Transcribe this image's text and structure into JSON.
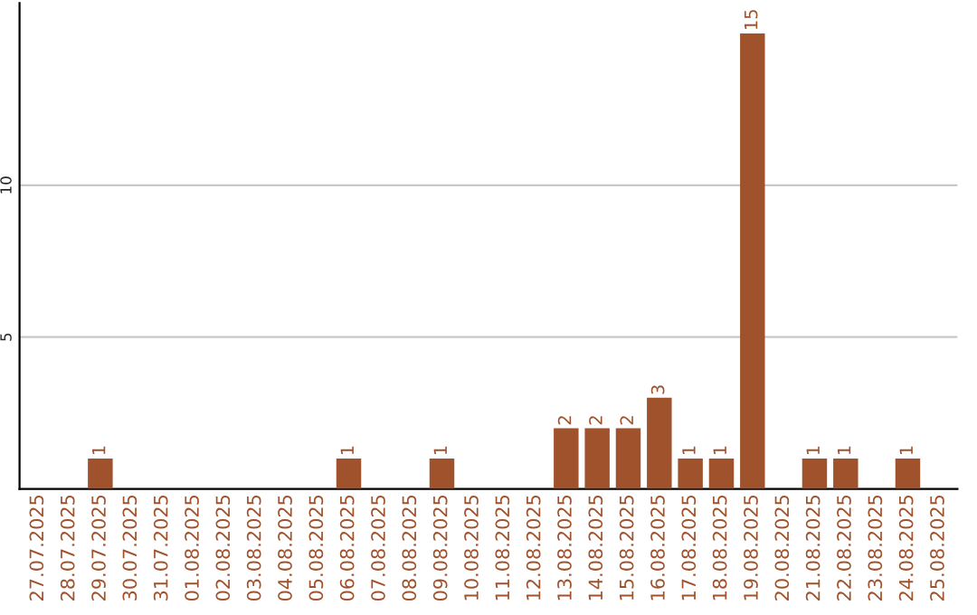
{
  "chart_data": {
    "type": "bar",
    "categories": [
      "27.07.2025",
      "28.07.2025",
      "29.07.2025",
      "30.07.2025",
      "31.07.2025",
      "01.08.2025",
      "02.08.2025",
      "03.08.2025",
      "04.08.2025",
      "05.08.2025",
      "06.08.2025",
      "07.08.2025",
      "08.08.2025",
      "09.08.2025",
      "10.08.2025",
      "11.08.2025",
      "12.08.2025",
      "13.08.2025",
      "14.08.2025",
      "15.08.2025",
      "16.08.2025",
      "17.08.2025",
      "18.08.2025",
      "19.08.2025",
      "20.08.2025",
      "21.08.2025",
      "22.08.2025",
      "23.08.2025",
      "24.08.2025",
      "25.08.2025"
    ],
    "values": [
      0,
      0,
      1,
      0,
      0,
      0,
      0,
      0,
      0,
      0,
      1,
      0,
      0,
      1,
      0,
      0,
      0,
      2,
      2,
      2,
      3,
      1,
      1,
      15,
      0,
      1,
      1,
      0,
      1,
      0
    ],
    "value_labels": [
      null,
      null,
      "1",
      null,
      null,
      null,
      null,
      null,
      null,
      null,
      "1",
      null,
      null,
      "1",
      null,
      null,
      null,
      "2",
      "2",
      "2",
      "3",
      "1",
      "1",
      "15",
      null,
      "1",
      "1",
      null,
      "1",
      null
    ],
    "color": "#a0522d",
    "ylim": [
      0,
      16
    ],
    "yticks": [
      5,
      10
    ],
    "grid": "y",
    "legend": false
  }
}
